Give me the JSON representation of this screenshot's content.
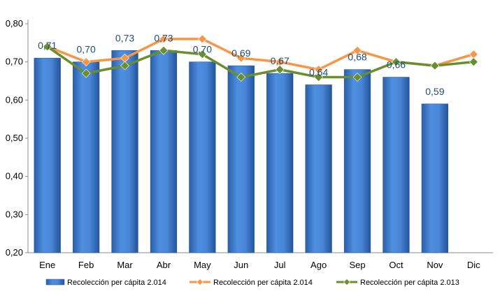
{
  "chart_data": {
    "type": "bar",
    "title": "",
    "xlabel": "",
    "ylabel": "",
    "categories": [
      "Ene",
      "Feb",
      "Mar",
      "Abr",
      "May",
      "Jun",
      "Jul",
      "Ago",
      "Sep",
      "Oct",
      "Nov",
      "Dic"
    ],
    "ylim": [
      0.2,
      0.8
    ],
    "yticks": [
      "0,20",
      "0,30",
      "0,40",
      "0,50",
      "0,60",
      "0,70",
      "0,80"
    ],
    "grid": false,
    "legend_position": "bottom",
    "series": [
      {
        "name": "Recolección per cápita 2.014",
        "kind": "bar",
        "color": "#3d7ad0",
        "values": [
          0.71,
          0.7,
          0.73,
          0.73,
          0.7,
          0.69,
          0.67,
          0.64,
          0.68,
          0.66,
          0.59,
          null
        ],
        "data_labels": [
          "0,71",
          "0,70",
          "0,73",
          "0,73",
          "0,70",
          "0,69",
          "0,67",
          "0,64",
          "0,68",
          "0,66",
          "0,59",
          ""
        ]
      },
      {
        "name": "Recolección per cápita 2.014",
        "kind": "line",
        "color": "#f79646",
        "marker": "diamond",
        "values": [
          0.74,
          0.7,
          0.71,
          0.76,
          0.76,
          0.71,
          0.7,
          0.68,
          0.73,
          0.7,
          0.69,
          0.72
        ]
      },
      {
        "name": "Recolección per cápita 2.013",
        "kind": "line",
        "color": "#6a8e2f",
        "marker": "diamond",
        "values": [
          0.74,
          0.67,
          0.69,
          0.73,
          0.72,
          0.66,
          0.68,
          0.66,
          0.66,
          0.7,
          0.69,
          0.7
        ]
      }
    ]
  }
}
